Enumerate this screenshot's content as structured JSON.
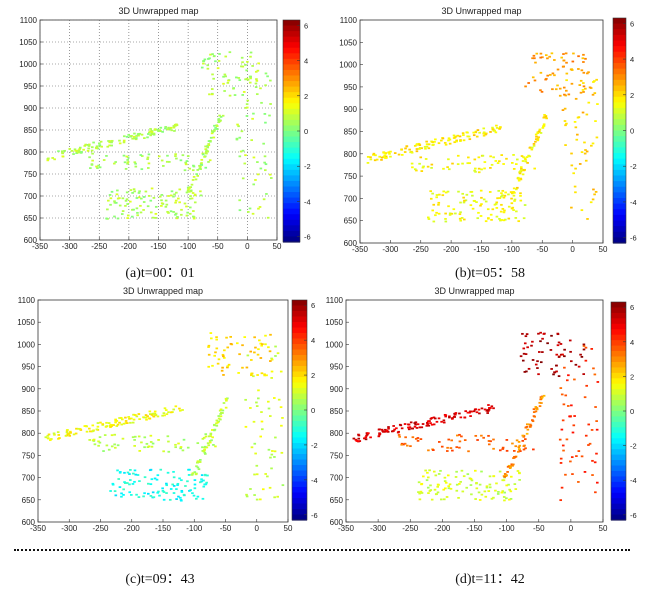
{
  "figure": {
    "captions": [
      "(a)t=00：01",
      "(b)t=05：58",
      "(c)t=09：43",
      "(d)t=11：42"
    ]
  },
  "colors": {
    "colormap": "jet",
    "accent_dark": "#7f0000",
    "accent_low": "#00007f"
  },
  "chart_data": [
    {
      "type": "scatter",
      "title": "3D Unwrapped map",
      "time": "00:01",
      "xlim": [
        -350,
        50
      ],
      "ylim": [
        600,
        1100
      ],
      "xticks": [
        -350,
        -300,
        -250,
        -200,
        -150,
        -100,
        -50,
        0,
        50
      ],
      "yticks": [
        600,
        650,
        700,
        750,
        800,
        850,
        900,
        950,
        1000,
        1050,
        1100
      ],
      "grid": true,
      "colorbar": {
        "range": [
          -6.3,
          6.3
        ],
        "ticks": [
          6,
          4,
          2,
          0,
          -2,
          -4,
          -6
        ]
      },
      "clusters": [
        {
          "name": "left-diagonal-band",
          "x_range": [
            -340,
            -120
          ],
          "y_range": [
            790,
            860
          ],
          "value": 0.6
        },
        {
          "name": "mid-band",
          "x_range": [
            -270,
            -60
          ],
          "y_range": [
            760,
            800
          ],
          "value": 0.6
        },
        {
          "name": "lower-cluster",
          "x_range": [
            -240,
            -80
          ],
          "y_range": [
            650,
            720
          ],
          "value": 0.6
        },
        {
          "name": "diagonal-strip",
          "x_range": [
            -110,
            -40
          ],
          "y_range": [
            700,
            900
          ],
          "value": 0.6
        },
        {
          "name": "right-cluster",
          "x_range": [
            -20,
            40
          ],
          "y_range": [
            650,
            1000
          ],
          "value": 0.6
        },
        {
          "name": "upper-sparse",
          "x_range": [
            -80,
            20
          ],
          "y_range": [
            930,
            1030
          ],
          "value": 0.6
        }
      ]
    },
    {
      "type": "scatter",
      "title": "3D Unwrapped map",
      "time": "05:58",
      "xlim": [
        -350,
        50
      ],
      "ylim": [
        600,
        1100
      ],
      "xticks": [
        -350,
        -300,
        -250,
        -200,
        -150,
        -100,
        -50,
        0,
        50
      ],
      "yticks": [
        600,
        650,
        700,
        750,
        800,
        850,
        900,
        950,
        1000,
        1050,
        1100
      ],
      "grid": false,
      "colorbar": {
        "range": [
          -6.3,
          6.3
        ],
        "ticks": [
          6,
          4,
          2,
          0,
          -2,
          -4,
          -6
        ]
      },
      "clusters": [
        {
          "name": "left-diagonal-band",
          "x_range": [
            -340,
            -120
          ],
          "y_range": [
            790,
            860
          ],
          "value": 1.8
        },
        {
          "name": "mid-band",
          "x_range": [
            -270,
            -60
          ],
          "y_range": [
            760,
            800
          ],
          "value": 1.6
        },
        {
          "name": "lower-cluster",
          "x_range": [
            -240,
            -80
          ],
          "y_range": [
            650,
            720
          ],
          "value": 1.5
        },
        {
          "name": "diagonal-strip",
          "x_range": [
            -110,
            -40
          ],
          "y_range": [
            700,
            900
          ],
          "value": 1.7
        },
        {
          "name": "right-cluster",
          "x_range": [
            -20,
            40
          ],
          "y_range": [
            650,
            1000
          ],
          "value": 2.2
        },
        {
          "name": "upper-sparse",
          "x_range": [
            -80,
            20
          ],
          "y_range": [
            930,
            1030
          ],
          "value": 2.8
        }
      ]
    },
    {
      "type": "scatter",
      "title": "3D Unwrapped map",
      "time": "09:43",
      "xlim": [
        -350,
        50
      ],
      "ylim": [
        600,
        1100
      ],
      "xticks": [
        -350,
        -300,
        -250,
        -200,
        -150,
        -100,
        -50,
        0,
        50
      ],
      "yticks": [
        600,
        650,
        700,
        750,
        800,
        850,
        900,
        950,
        1000,
        1050,
        1100
      ],
      "grid": false,
      "colorbar": {
        "range": [
          -6.3,
          6.3
        ],
        "ticks": [
          6,
          4,
          2,
          0,
          -2,
          -4,
          -6
        ]
      },
      "clusters": [
        {
          "name": "left-diagonal-band",
          "x_range": [
            -340,
            -120
          ],
          "y_range": [
            790,
            860
          ],
          "value": 1.5
        },
        {
          "name": "mid-band",
          "x_range": [
            -270,
            -60
          ],
          "y_range": [
            760,
            800
          ],
          "value": 0.7
        },
        {
          "name": "lower-cluster",
          "x_range": [
            -240,
            -80
          ],
          "y_range": [
            650,
            720
          ],
          "value": -1.4
        },
        {
          "name": "diagonal-strip",
          "x_range": [
            -110,
            -40
          ],
          "y_range": [
            700,
            900
          ],
          "value": 0.8
        },
        {
          "name": "right-cluster",
          "x_range": [
            -20,
            40
          ],
          "y_range": [
            650,
            1000
          ],
          "value": 1.0
        },
        {
          "name": "upper-sparse",
          "x_range": [
            -80,
            20
          ],
          "y_range": [
            930,
            1030
          ],
          "value": 2.0
        }
      ]
    },
    {
      "type": "scatter",
      "title": "3D Unwrapped map",
      "time": "11:42",
      "xlim": [
        -350,
        50
      ],
      "ylim": [
        600,
        1100
      ],
      "xticks": [
        -350,
        -300,
        -250,
        -200,
        -150,
        -100,
        -50,
        0,
        50
      ],
      "yticks": [
        600,
        650,
        700,
        750,
        800,
        850,
        900,
        950,
        1000,
        1050,
        1100
      ],
      "grid": false,
      "colorbar": {
        "range": [
          -6.3,
          6.3
        ],
        "ticks": [
          6,
          4,
          2,
          0,
          -2,
          -4,
          -6
        ]
      },
      "clusters": [
        {
          "name": "left-diagonal-band",
          "x_range": [
            -340,
            -120
          ],
          "y_range": [
            790,
            860
          ],
          "value": 5.2
        },
        {
          "name": "mid-band",
          "x_range": [
            -270,
            -60
          ],
          "y_range": [
            760,
            800
          ],
          "value": 3.5
        },
        {
          "name": "lower-cluster",
          "x_range": [
            -240,
            -80
          ],
          "y_range": [
            650,
            720
          ],
          "value": 1.0
        },
        {
          "name": "diagonal-strip",
          "x_range": [
            -110,
            -40
          ],
          "y_range": [
            700,
            900
          ],
          "value": 3.0
        },
        {
          "name": "right-cluster",
          "x_range": [
            -20,
            40
          ],
          "y_range": [
            650,
            1000
          ],
          "value": 4.0
        },
        {
          "name": "upper-sparse",
          "x_range": [
            -80,
            20
          ],
          "y_range": [
            930,
            1030
          ],
          "value": 5.8
        }
      ]
    }
  ]
}
